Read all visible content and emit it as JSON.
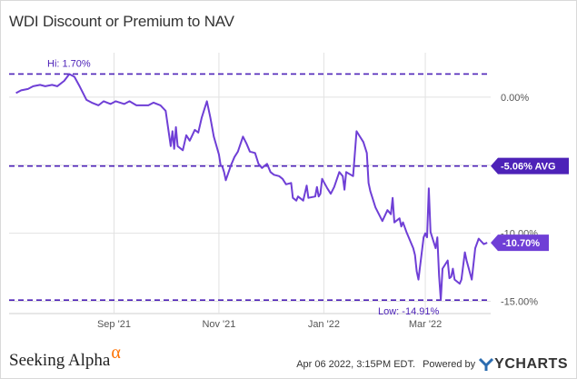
{
  "title": "WDI Discount or Premium to NAV",
  "footer": {
    "brand": "Seeking Alpha",
    "brand_mark": "α",
    "timestamp": "Apr 06 2022, 3:15PM EDT.",
    "powered_by": "Powered by",
    "provider": "YCHARTS"
  },
  "colors": {
    "series": "#6f3fd6",
    "reference": "#4d22b8",
    "grid": "#e2e2e2"
  },
  "chart_data": {
    "type": "line",
    "title": "WDI Discount or Premium to NAV",
    "xlabel": "",
    "ylabel": "",
    "ylim": [
      -15.9,
      3.0
    ],
    "x_ticks": [
      {
        "label": "Sep '21",
        "date": "2021-09-01"
      },
      {
        "label": "Nov '21",
        "date": "2021-11-01"
      },
      {
        "label": "Jan '22",
        "date": "2022-01-01"
      },
      {
        "label": "Mar '22",
        "date": "2022-03-01"
      }
    ],
    "y_ticks": [
      {
        "value": 0,
        "label": "0.00%"
      },
      {
        "value": -5,
        "label": "-5.00%"
      },
      {
        "value": -10,
        "label": "-10.00%"
      },
      {
        "value": -15,
        "label": "-15.00%"
      }
    ],
    "reference_lines": [
      {
        "value": 1.7,
        "label": "Hi: 1.70%",
        "kind": "high"
      },
      {
        "value": -5.06,
        "label": "-5.06% AVG",
        "kind": "average"
      },
      {
        "value": -14.91,
        "label": "Low: -14.91%",
        "kind": "low"
      }
    ],
    "last_value": {
      "value": -10.7,
      "label": "-10.70%"
    },
    "grid": true,
    "series": [
      {
        "values": [
          [
            "2021-07-06",
            0.3
          ],
          [
            "2021-07-09",
            0.5
          ],
          [
            "2021-07-13",
            0.6
          ],
          [
            "2021-07-16",
            0.8
          ],
          [
            "2021-07-20",
            0.9
          ],
          [
            "2021-07-23",
            0.8
          ],
          [
            "2021-07-27",
            0.9
          ],
          [
            "2021-07-30",
            0.8
          ],
          [
            "2021-08-03",
            1.2
          ],
          [
            "2021-08-06",
            1.7
          ],
          [
            "2021-08-09",
            1.5
          ],
          [
            "2021-08-12",
            0.8
          ],
          [
            "2021-08-16",
            -0.2
          ],
          [
            "2021-08-19",
            -0.4
          ],
          [
            "2021-08-23",
            -0.6
          ],
          [
            "2021-08-26",
            -0.3
          ],
          [
            "2021-08-30",
            -0.5
          ],
          [
            "2021-09-02",
            -0.3
          ],
          [
            "2021-09-07",
            -0.5
          ],
          [
            "2021-09-10",
            -0.3
          ],
          [
            "2021-09-14",
            -0.6
          ],
          [
            "2021-09-17",
            -0.6
          ],
          [
            "2021-09-21",
            -0.6
          ],
          [
            "2021-09-24",
            -0.4
          ],
          [
            "2021-09-28",
            -0.6
          ],
          [
            "2021-10-01",
            -1.0
          ],
          [
            "2021-10-04",
            -3.6
          ],
          [
            "2021-10-05",
            -2.5
          ],
          [
            "2021-10-06",
            -3.8
          ],
          [
            "2021-10-07",
            -2.2
          ],
          [
            "2021-10-08",
            -3.6
          ],
          [
            "2021-10-11",
            -3.9
          ],
          [
            "2021-10-13",
            -2.8
          ],
          [
            "2021-10-15",
            -3.2
          ],
          [
            "2021-10-18",
            -2.4
          ],
          [
            "2021-10-20",
            -2.6
          ],
          [
            "2021-10-22",
            -1.5
          ],
          [
            "2021-10-25",
            -0.3
          ],
          [
            "2021-10-27",
            -1.5
          ],
          [
            "2021-10-29",
            -2.9
          ],
          [
            "2021-11-01",
            -4.2
          ],
          [
            "2021-11-02",
            -5.0
          ],
          [
            "2021-11-03",
            -5.1
          ],
          [
            "2021-11-04",
            -5.5
          ],
          [
            "2021-11-05",
            -6.1
          ],
          [
            "2021-11-08",
            -5.0
          ],
          [
            "2021-11-10",
            -4.4
          ],
          [
            "2021-11-12",
            -4.0
          ],
          [
            "2021-11-15",
            -2.9
          ],
          [
            "2021-11-17",
            -3.4
          ],
          [
            "2021-11-19",
            -4.0
          ],
          [
            "2021-11-22",
            -4.1
          ],
          [
            "2021-11-24",
            -4.9
          ],
          [
            "2021-11-26",
            -5.2
          ],
          [
            "2021-11-29",
            -4.9
          ],
          [
            "2021-12-01",
            -5.5
          ],
          [
            "2021-12-03",
            -5.7
          ],
          [
            "2021-12-06",
            -5.8
          ],
          [
            "2021-12-08",
            -6.0
          ],
          [
            "2021-12-10",
            -6.4
          ],
          [
            "2021-12-13",
            -6.3
          ],
          [
            "2021-12-14",
            -7.4
          ],
          [
            "2021-12-16",
            -7.6
          ],
          [
            "2021-12-17",
            -7.3
          ],
          [
            "2021-12-20",
            -7.6
          ],
          [
            "2021-12-22",
            -6.5
          ],
          [
            "2021-12-23",
            -7.4
          ],
          [
            "2021-12-27",
            -7.3
          ],
          [
            "2021-12-28",
            -6.6
          ],
          [
            "2021-12-29",
            -7.3
          ],
          [
            "2021-12-30",
            -7.1
          ],
          [
            "2021-12-31",
            -6.0
          ],
          [
            "2022-01-03",
            -6.7
          ],
          [
            "2022-01-05",
            -7.1
          ],
          [
            "2022-01-07",
            -6.6
          ],
          [
            "2022-01-10",
            -5.5
          ],
          [
            "2022-01-12",
            -5.8
          ],
          [
            "2022-01-13",
            -6.8
          ],
          [
            "2022-01-14",
            -5.5
          ],
          [
            "2022-01-18",
            -5.8
          ],
          [
            "2022-01-20",
            -2.5
          ],
          [
            "2022-01-24",
            -3.3
          ],
          [
            "2022-01-26",
            -4.1
          ],
          [
            "2022-01-27",
            -6.3
          ],
          [
            "2022-01-28",
            -6.9
          ],
          [
            "2022-01-31",
            -8.1
          ],
          [
            "2022-02-02",
            -8.6
          ],
          [
            "2022-02-04",
            -9.1
          ],
          [
            "2022-02-07",
            -8.3
          ],
          [
            "2022-02-09",
            -8.6
          ],
          [
            "2022-02-10",
            -7.4
          ],
          [
            "2022-02-11",
            -9.2
          ],
          [
            "2022-02-14",
            -8.9
          ],
          [
            "2022-02-15",
            -9.5
          ],
          [
            "2022-02-16",
            -9.2
          ],
          [
            "2022-02-18",
            -9.9
          ],
          [
            "2022-02-22",
            -11.1
          ],
          [
            "2022-02-23",
            -11.6
          ],
          [
            "2022-02-24",
            -12.8
          ],
          [
            "2022-02-25",
            -13.4
          ],
          [
            "2022-02-28",
            -10.3
          ],
          [
            "2022-03-01",
            -10.0
          ],
          [
            "2022-03-02",
            -10.3
          ],
          [
            "2022-03-03",
            -6.7
          ],
          [
            "2022-03-04",
            -9.9
          ],
          [
            "2022-03-07",
            -11.1
          ],
          [
            "2022-03-08",
            -10.3
          ],
          [
            "2022-03-09",
            -13.1
          ],
          [
            "2022-03-10",
            -14.9
          ],
          [
            "2022-03-11",
            -12.6
          ],
          [
            "2022-03-14",
            -12.0
          ],
          [
            "2022-03-15",
            -13.3
          ],
          [
            "2022-03-16",
            -13.2
          ],
          [
            "2022-03-17",
            -12.6
          ],
          [
            "2022-03-18",
            -13.4
          ],
          [
            "2022-03-21",
            -13.7
          ],
          [
            "2022-03-22",
            -13.4
          ],
          [
            "2022-03-24",
            -11.4
          ],
          [
            "2022-03-25",
            -12.0
          ],
          [
            "2022-03-28",
            -13.4
          ],
          [
            "2022-03-30",
            -11.1
          ],
          [
            "2022-04-01",
            -10.4
          ],
          [
            "2022-04-04",
            -10.8
          ],
          [
            "2022-04-06",
            -10.7
          ]
        ]
      }
    ]
  }
}
